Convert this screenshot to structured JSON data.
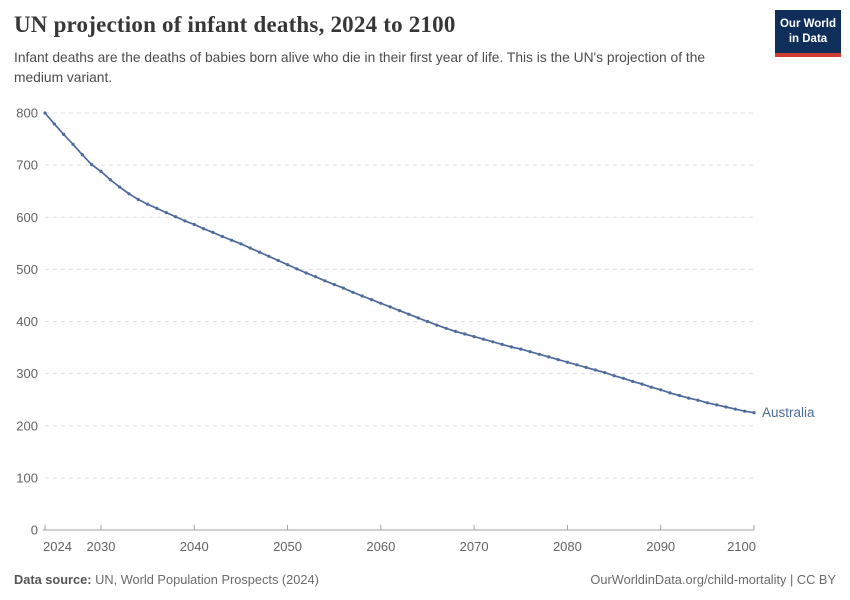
{
  "header": {
    "title": "UN projection of infant deaths, 2024 to 2100",
    "subtitle": "Infant deaths are the deaths of babies born alive who die in their first year of life. This is the UN's projection of the medium variant.",
    "logo": {
      "line1": "Our World",
      "line2": "in Data",
      "bg_color": "#0f2e5a",
      "accent_color": "#d0392f"
    }
  },
  "chart_data": {
    "type": "line",
    "title": "UN projection of infant deaths, 2024 to 2100",
    "xlabel": "",
    "ylabel": "",
    "xlim": [
      2024,
      2100
    ],
    "ylim": [
      0,
      800
    ],
    "xticks": [
      2024,
      2030,
      2040,
      2050,
      2060,
      2070,
      2080,
      2090,
      2100
    ],
    "yticks": [
      0,
      100,
      200,
      300,
      400,
      500,
      600,
      700,
      800
    ],
    "grid": "horizontal-dashed",
    "legend_position": "end-of-line",
    "series": [
      {
        "name": "Australia",
        "color": "#4c6a9c",
        "marker": "dot",
        "x": [
          2024,
          2025,
          2026,
          2027,
          2028,
          2029,
          2030,
          2031,
          2032,
          2033,
          2034,
          2035,
          2036,
          2037,
          2038,
          2039,
          2040,
          2041,
          2042,
          2043,
          2044,
          2045,
          2046,
          2047,
          2048,
          2049,
          2050,
          2051,
          2052,
          2053,
          2054,
          2055,
          2056,
          2057,
          2058,
          2059,
          2060,
          2061,
          2062,
          2063,
          2064,
          2065,
          2066,
          2067,
          2068,
          2069,
          2070,
          2071,
          2072,
          2073,
          2074,
          2075,
          2076,
          2077,
          2078,
          2079,
          2080,
          2081,
          2082,
          2083,
          2084,
          2085,
          2086,
          2087,
          2088,
          2089,
          2090,
          2091,
          2092,
          2093,
          2094,
          2095,
          2096,
          2097,
          2098,
          2099,
          2100
        ],
        "values": [
          800,
          779,
          759,
          740,
          720,
          701,
          688,
          672,
          658,
          645,
          634,
          625,
          617,
          609,
          601,
          593,
          586,
          578,
          571,
          563,
          556,
          549,
          541,
          533,
          525,
          517,
          509,
          501,
          493,
          486,
          478,
          471,
          464,
          456,
          449,
          442,
          435,
          428,
          421,
          414,
          407,
          400,
          393,
          387,
          381,
          376,
          371,
          366,
          361,
          356,
          351,
          347,
          342,
          337,
          332,
          327,
          322,
          317,
          312,
          307,
          302,
          296,
          291,
          285,
          280,
          274,
          269,
          263,
          258,
          253,
          249,
          244,
          240,
          236,
          232,
          228,
          225
        ]
      }
    ]
  },
  "footer": {
    "source_label": "Data source:",
    "source_text": "UN, World Population Prospects (2024)",
    "credit": "OurWorldinData.org/child-mortality | CC BY"
  }
}
